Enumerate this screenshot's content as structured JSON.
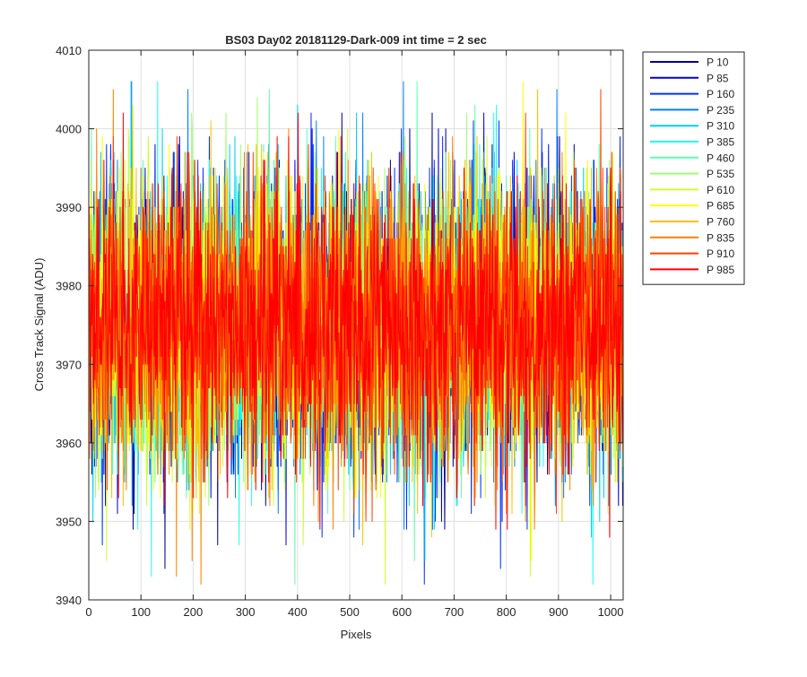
{
  "chart_data": {
    "type": "line",
    "title": "BS03 Day02 20181129-Dark-009 int time = 2 sec",
    "xlabel": "Pixels",
    "ylabel": "Cross Track Signal (ADU)",
    "xlim": [
      0,
      1024
    ],
    "ylim": [
      3940,
      4010
    ],
    "xticks": [
      0,
      100,
      200,
      300,
      400,
      500,
      600,
      700,
      800,
      900,
      1000
    ],
    "yticks": [
      3940,
      3950,
      3960,
      3970,
      3980,
      3990,
      4000,
      4010
    ],
    "grid": true,
    "legend_position": "outside-top-right",
    "num_points_per_series": 1024,
    "noise_mean": 3975,
    "noise_std": 9,
    "series": [
      {
        "name": "P 10",
        "color": "#00008f"
      },
      {
        "name": "P 85",
        "color": "#0000df"
      },
      {
        "name": "P 160",
        "color": "#0030ff"
      },
      {
        "name": "P 235",
        "color": "#0080ff"
      },
      {
        "name": "P 310",
        "color": "#00cfff"
      },
      {
        "name": "P 385",
        "color": "#20ffef"
      },
      {
        "name": "P 460",
        "color": "#60ffaf"
      },
      {
        "name": "P 535",
        "color": "#9fff70"
      },
      {
        "name": "P 610",
        "color": "#cfff30"
      },
      {
        "name": "P 685",
        "color": "#ffff00"
      },
      {
        "name": "P 760",
        "color": "#ffc000"
      },
      {
        "name": "P 835",
        "color": "#ff8000"
      },
      {
        "name": "P 910",
        "color": "#ff4000"
      },
      {
        "name": "P 985",
        "color": "#ff0000"
      }
    ]
  }
}
